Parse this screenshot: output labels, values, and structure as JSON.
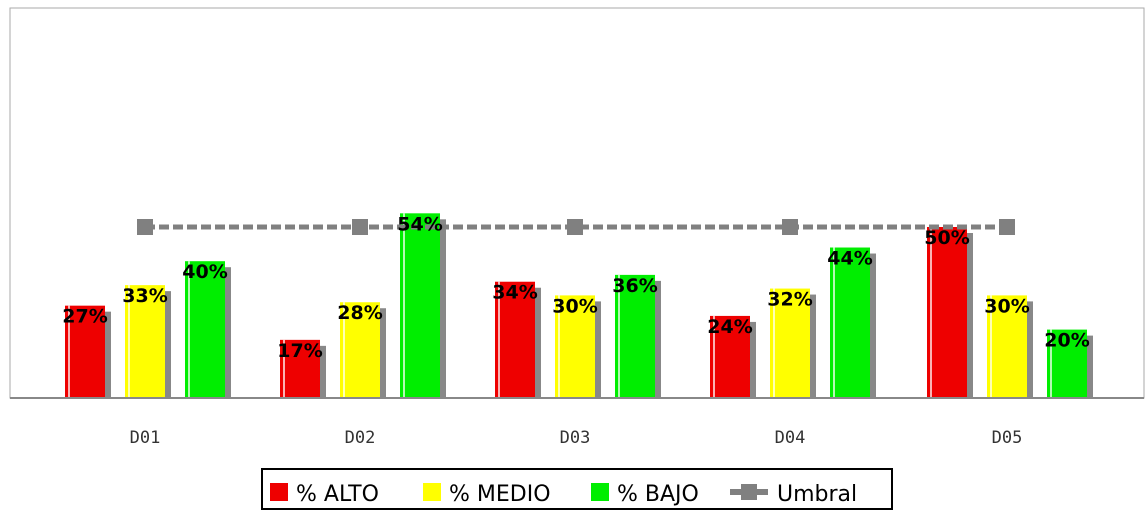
{
  "chart_data": {
    "type": "bar",
    "title": "",
    "xlabel": "",
    "ylabel": "",
    "ylim": [
      0,
      100
    ],
    "categories": [
      "D01",
      "D02",
      "D03",
      "D04",
      "D05"
    ],
    "series": [
      {
        "name": "% ALTO",
        "color": "#ee0000",
        "values": [
          27,
          17,
          34,
          24,
          50
        ],
        "labels": [
          "27%",
          "17%",
          "34%",
          "24%",
          "50%"
        ]
      },
      {
        "name": "% MEDIO",
        "color": "#ffff00",
        "values": [
          33,
          28,
          30,
          32,
          30
        ],
        "labels": [
          "33%",
          "28%",
          "30%",
          "32%",
          "30%"
        ]
      },
      {
        "name": "% BAJO",
        "color": "#00ee00",
        "values": [
          40,
          54,
          36,
          44,
          20
        ],
        "labels": [
          "40%",
          "54%",
          "36%",
          "44%",
          "20%"
        ]
      }
    ],
    "line_series": {
      "name": "Umbral",
      "color": "#808080",
      "values": [
        50,
        50,
        50,
        50,
        50
      ],
      "style": "dashed",
      "marker": "square"
    },
    "grid": false,
    "legend_position": "bottom-center"
  }
}
